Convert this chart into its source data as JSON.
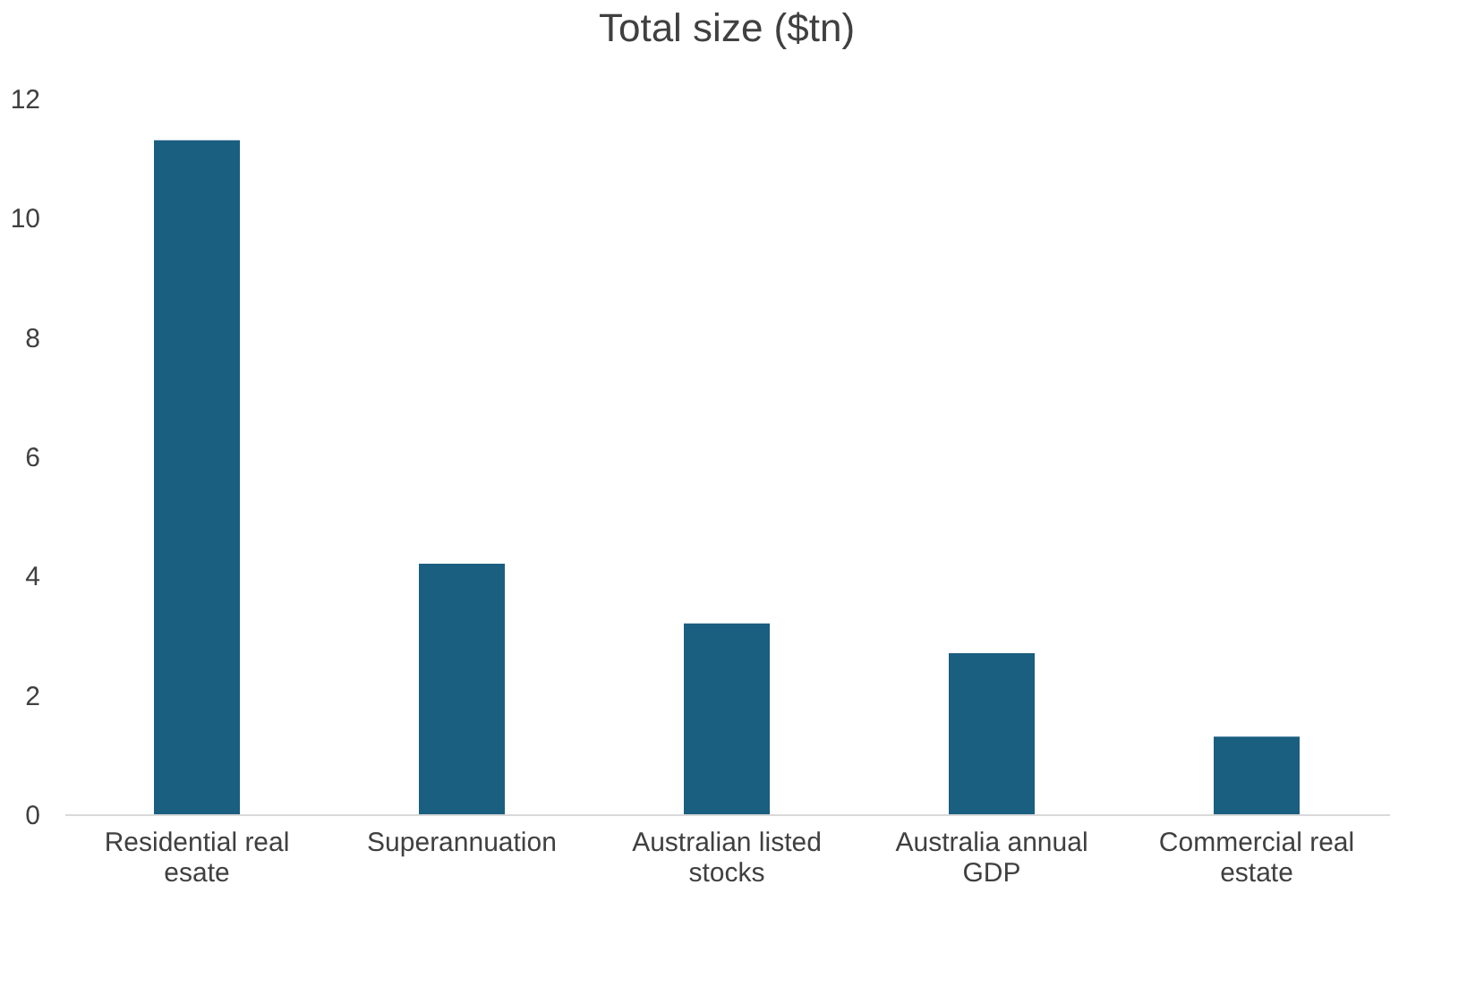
{
  "chart_data": {
    "type": "bar",
    "title": "Total size ($tn)",
    "categories": [
      "Residential real esate",
      "Superannuation",
      "Australian listed stocks",
      "Australia annual GDP",
      "Commercial real estate"
    ],
    "values": [
      11.3,
      4.2,
      3.2,
      2.7,
      1.3
    ],
    "color": "#1a5e80",
    "ylim": [
      0,
      12
    ],
    "yticks": [
      0,
      2,
      4,
      6,
      8,
      10,
      12
    ],
    "grid": false
  }
}
